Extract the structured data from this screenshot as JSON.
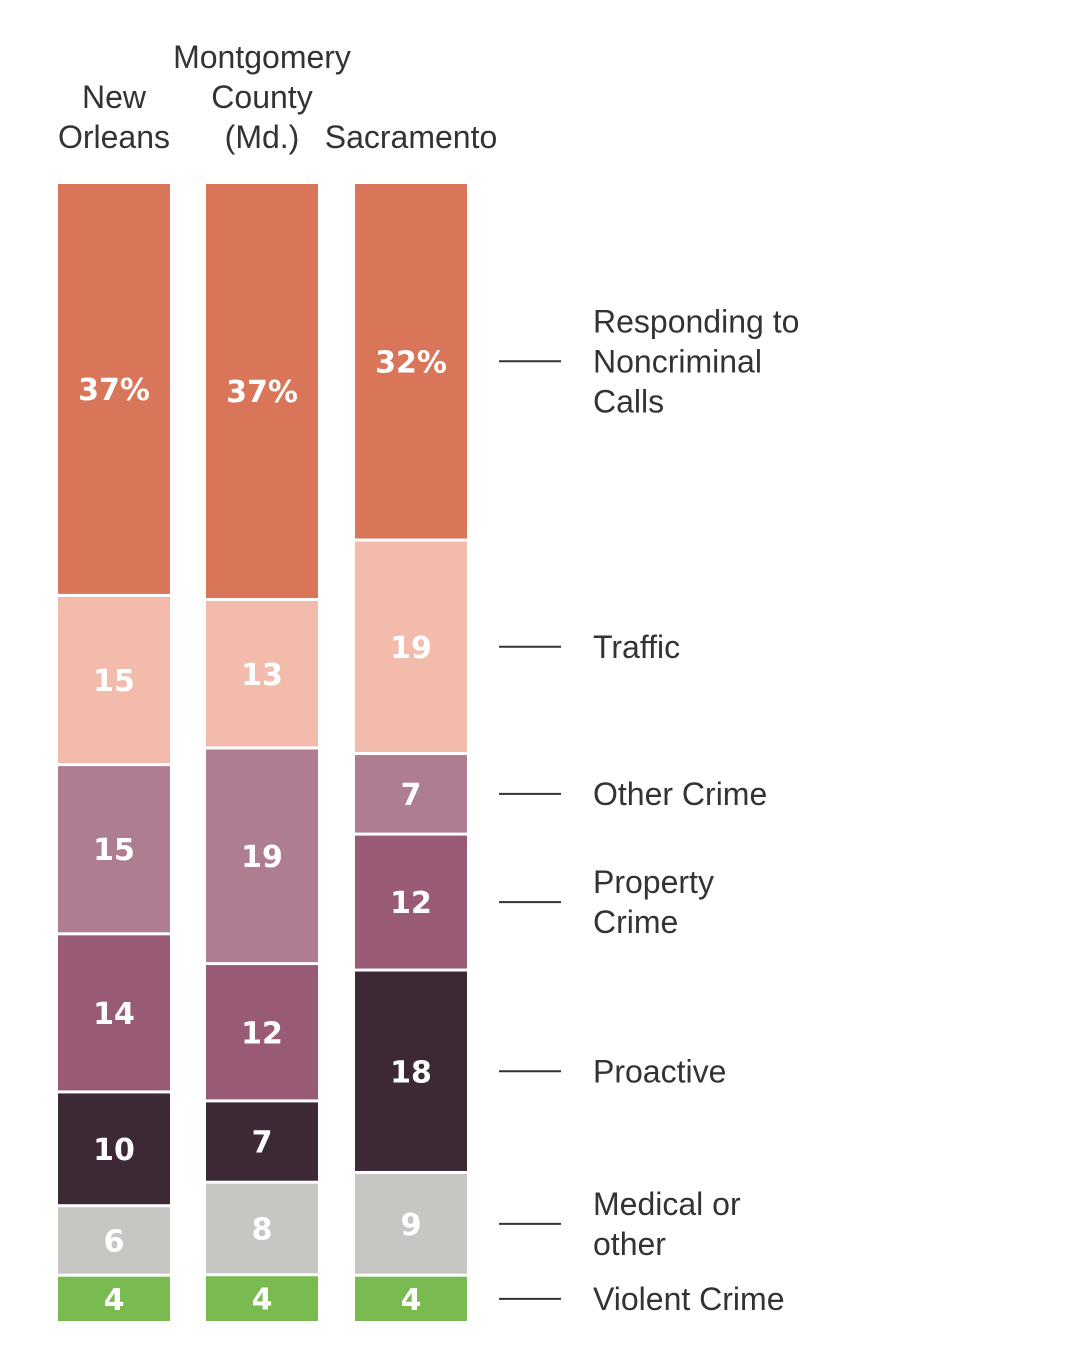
{
  "chart_data": {
    "type": "bar",
    "stacked": true,
    "orientation": "vertical-stacked-100",
    "categories": [
      "New Orleans",
      "Montgomery County (Md.)",
      "Sacramento"
    ],
    "category_label_lines": [
      [
        "New",
        "Orleans"
      ],
      [
        "Montgomery",
        "County",
        "(Md.)"
      ],
      [
        "Sacramento"
      ]
    ],
    "series": [
      {
        "name": "Responding to Noncriminal Calls",
        "legend_lines": [
          "Responding to",
          "Noncriminal",
          "Calls"
        ],
        "color": "#D9765A",
        "values": [
          37,
          37,
          32
        ],
        "labels": [
          "37%",
          "37%",
          "32%"
        ]
      },
      {
        "name": "Traffic",
        "legend_lines": [
          "Traffic"
        ],
        "color": "#F2BBAB",
        "values": [
          15,
          13,
          19
        ],
        "labels": [
          "15",
          "13",
          "19"
        ]
      },
      {
        "name": "Other Crime",
        "legend_lines": [
          "Other Crime"
        ],
        "color": "#AE7D91",
        "values": [
          15,
          19,
          7
        ],
        "labels": [
          "15",
          "19",
          "7"
        ]
      },
      {
        "name": "Property Crime",
        "legend_lines": [
          "Property",
          "Crime"
        ],
        "color": "#985A74",
        "values": [
          14,
          12,
          12
        ],
        "labels": [
          "14",
          "12",
          "12"
        ]
      },
      {
        "name": "Proactive",
        "legend_lines": [
          "Proactive"
        ],
        "color": "#3D2836",
        "values": [
          10,
          7,
          18
        ],
        "labels": [
          "10",
          "7",
          "18"
        ]
      },
      {
        "name": "Medical or other",
        "legend_lines": [
          "Medical or",
          "other"
        ],
        "color": "#C6C6C2",
        "values": [
          6,
          8,
          9
        ],
        "labels": [
          "6",
          "8",
          "9"
        ]
      },
      {
        "name": "Violent Crime",
        "legend_lines": [
          "Violent Crime"
        ],
        "color": "#79BA51",
        "values": [
          4,
          4,
          4
        ],
        "labels": [
          "4",
          "4",
          "4"
        ]
      }
    ],
    "legend_anchor_column": "Sacramento",
    "legend_position": "right",
    "ylim": [
      0,
      100
    ],
    "grid": false
  }
}
